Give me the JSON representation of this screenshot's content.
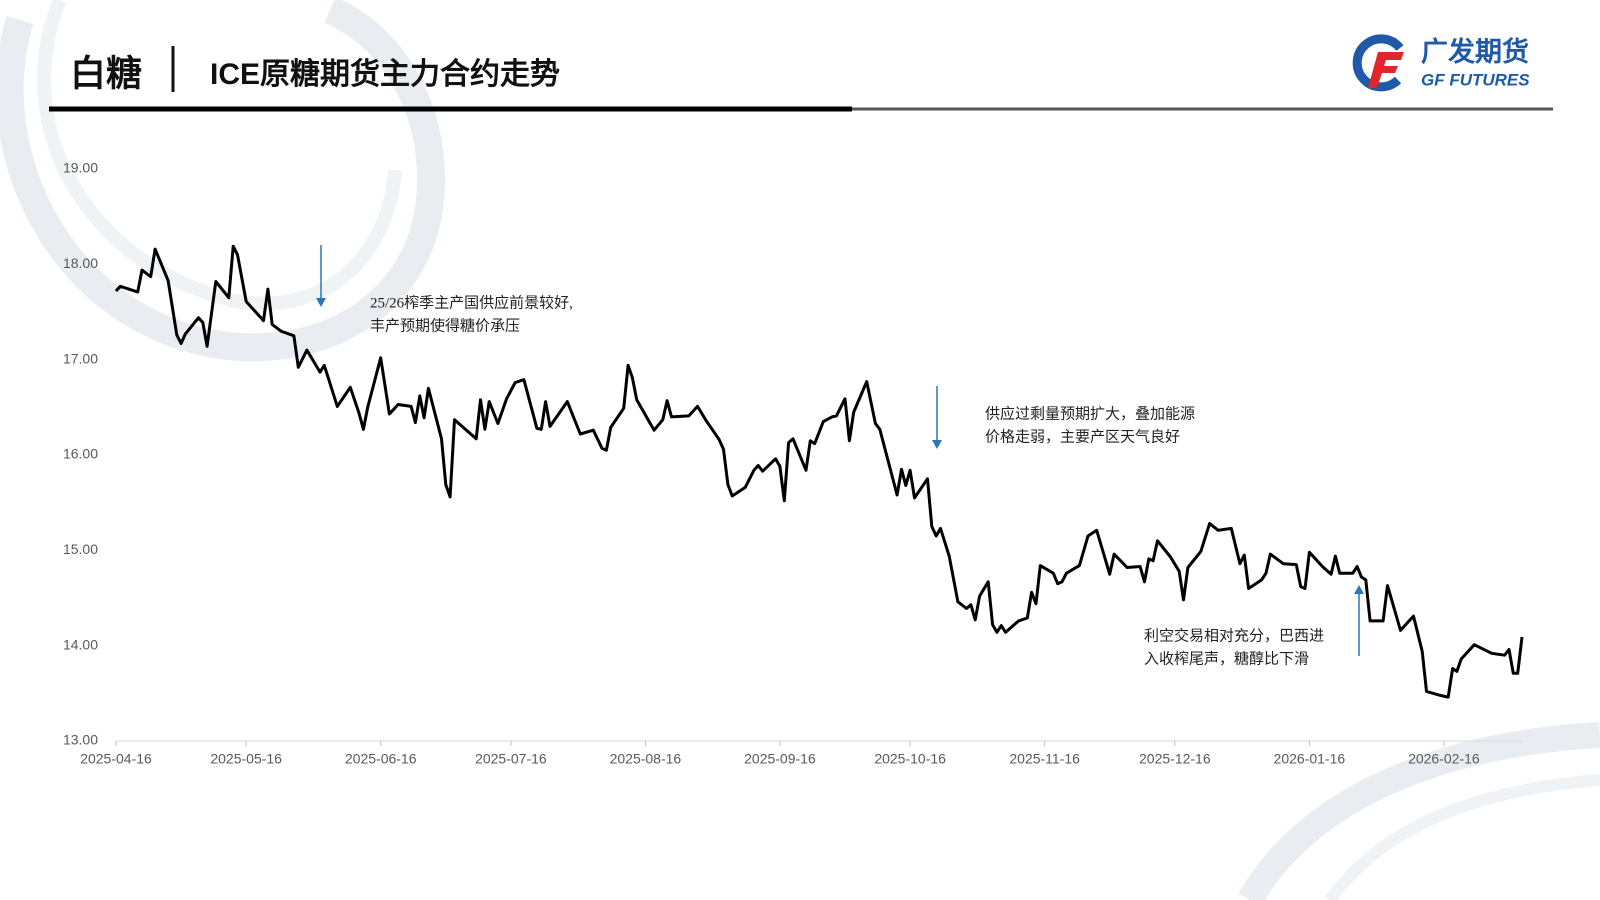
{
  "header": {
    "section": "白糖",
    "logo_cn": "广发期货",
    "logo_en": "GF FUTURES"
  },
  "chart_data": {
    "type": "line",
    "title": "ICE原糖期货主力合约走势",
    "annotations": [
      [
        "25/26榨季主产国供应前景较好,",
        "丰产预期使得糖价承压"
      ],
      [
        "供应过剩量预期扩大，叠加能源",
        "价格走弱，主要产区天气良好"
      ],
      [
        "利空交易相对充分，巴西进",
        "入收榨尾声，糖醇比下滑"
      ]
    ],
    "xlim": [
      "2025-04-16",
      "2026-03-06"
    ],
    "xticks": [
      "2025-04-16",
      "2025-05-16",
      "2025-06-16",
      "2025-07-16",
      "2025-08-16",
      "2025-09-16",
      "2025-10-16",
      "2025-11-16",
      "2025-12-16",
      "2026-01-16",
      "2026-02-16"
    ],
    "ylim": [
      13,
      19
    ],
    "yticks": [
      {
        "value": 13,
        "label": "13.00"
      },
      {
        "value": 14,
        "label": "14.00"
      },
      {
        "value": 15,
        "label": "15.00"
      },
      {
        "value": 16,
        "label": "16.00"
      },
      {
        "value": 17,
        "label": "17.00"
      },
      {
        "value": 18,
        "label": "18.00"
      },
      {
        "value": 19,
        "label": "19.00"
      }
    ],
    "color": "#000000",
    "x": [
      "2025-04-16",
      "2025-04-17",
      "2025-04-21",
      "2025-04-22",
      "2025-04-24",
      "2025-04-25",
      "2025-04-28",
      "2025-04-30",
      "2025-05-01",
      "2025-05-02",
      "2025-05-05",
      "2025-05-06",
      "2025-05-07",
      "2025-05-09",
      "2025-05-12",
      "2025-05-13",
      "2025-05-14",
      "2025-05-16",
      "2025-05-20",
      "2025-05-21",
      "2025-05-22",
      "2025-05-24",
      "2025-05-27",
      "2025-05-28",
      "2025-05-30",
      "2025-06-02",
      "2025-06-03",
      "2025-06-06",
      "2025-06-09",
      "2025-06-11",
      "2025-06-12",
      "2025-06-13",
      "2025-06-16",
      "2025-06-18",
      "2025-06-20",
      "2025-06-23",
      "2025-06-24",
      "2025-06-25",
      "2025-06-26",
      "2025-06-27",
      "2025-06-30",
      "2025-07-01",
      "2025-07-02",
      "2025-07-03",
      "2025-07-08",
      "2025-07-09",
      "2025-07-10",
      "2025-07-11",
      "2025-07-13",
      "2025-07-15",
      "2025-07-17",
      "2025-07-19",
      "2025-07-22",
      "2025-07-23",
      "2025-07-24",
      "2025-07-25",
      "2025-07-29",
      "2025-08-01",
      "2025-08-04",
      "2025-08-06",
      "2025-08-07",
      "2025-08-08",
      "2025-08-11",
      "2025-08-12",
      "2025-08-13",
      "2025-08-14",
      "2025-08-18",
      "2025-08-20",
      "2025-08-21",
      "2025-08-22",
      "2025-08-26",
      "2025-08-28",
      "2025-08-30",
      "2025-09-02",
      "2025-09-03",
      "2025-09-04",
      "2025-09-05",
      "2025-09-08",
      "2025-09-10",
      "2025-09-11",
      "2025-09-12",
      "2025-09-15",
      "2025-09-16",
      "2025-09-17",
      "2025-09-18",
      "2025-09-19",
      "2025-09-22",
      "2025-09-23",
      "2025-09-24",
      "2025-09-26",
      "2025-09-28",
      "2025-09-29",
      "2025-10-01",
      "2025-10-02",
      "2025-10-03",
      "2025-10-06",
      "2025-10-08",
      "2025-10-09",
      "2025-10-13",
      "2025-10-14",
      "2025-10-15",
      "2025-10-16",
      "2025-10-17",
      "2025-10-20",
      "2025-10-21",
      "2025-10-22",
      "2025-10-23",
      "2025-10-25",
      "2025-10-27",
      "2025-10-29",
      "2025-10-30",
      "2025-10-31",
      "2025-11-01",
      "2025-11-03",
      "2025-11-04",
      "2025-11-05",
      "2025-11-06",
      "2025-11-07",
      "2025-11-10",
      "2025-11-12",
      "2025-11-13",
      "2025-11-14",
      "2025-11-15",
      "2025-11-18",
      "2025-11-19",
      "2025-11-20",
      "2025-11-21",
      "2025-11-24",
      "2025-11-26",
      "2025-11-28",
      "2025-12-01",
      "2025-12-02",
      "2025-12-05",
      "2025-12-08",
      "2025-12-09",
      "2025-12-10",
      "2025-12-11",
      "2025-12-12",
      "2025-12-15",
      "2025-12-17",
      "2025-12-18",
      "2025-12-19",
      "2025-12-22",
      "2025-12-24",
      "2025-12-26",
      "2025-12-29",
      "2025-12-31",
      "2026-01-01",
      "2026-01-02",
      "2026-01-05",
      "2026-01-06",
      "2026-01-07",
      "2026-01-10",
      "2026-01-13",
      "2026-01-14",
      "2026-01-15",
      "2026-01-16",
      "2026-01-19",
      "2026-01-21",
      "2026-01-22",
      "2026-01-23",
      "2026-01-26",
      "2026-01-27",
      "2026-01-28",
      "2026-01-29",
      "2026-01-30",
      "2026-02-02",
      "2026-02-03",
      "2026-02-06",
      "2026-02-09",
      "2026-02-11",
      "2026-02-12",
      "2026-02-15",
      "2026-02-17",
      "2026-02-18",
      "2026-02-19",
      "2026-02-20",
      "2026-02-23",
      "2026-02-27",
      "2026-03-02",
      "2026-03-03",
      "2026-03-04",
      "2026-03-05",
      "2026-03-06"
    ],
    "values": [
      17.72,
      17.77,
      17.71,
      17.94,
      17.87,
      18.16,
      17.83,
      17.26,
      17.17,
      17.27,
      17.44,
      17.39,
      17.14,
      17.82,
      17.65,
      18.19,
      18.1,
      17.61,
      17.41,
      17.74,
      17.37,
      17.3,
      17.25,
      16.92,
      17.1,
      16.87,
      16.94,
      16.51,
      16.71,
      16.44,
      16.27,
      16.5,
      17.02,
      16.43,
      16.53,
      16.51,
      16.34,
      16.62,
      16.39,
      16.7,
      16.17,
      15.69,
      15.56,
      16.37,
      16.17,
      16.58,
      16.27,
      16.56,
      16.33,
      16.59,
      16.76,
      16.79,
      16.28,
      16.27,
      16.56,
      16.3,
      16.56,
      16.22,
      16.26,
      16.07,
      16.05,
      16.29,
      16.49,
      16.94,
      16.81,
      16.58,
      16.26,
      16.37,
      16.57,
      16.4,
      16.41,
      16.51,
      16.36,
      16.16,
      16.06,
      15.69,
      15.57,
      15.66,
      15.84,
      15.89,
      15.83,
      15.96,
      15.88,
      15.52,
      16.13,
      16.17,
      15.84,
      16.15,
      16.12,
      16.35,
      16.4,
      16.41,
      16.59,
      16.15,
      16.45,
      16.77,
      16.33,
      16.27,
      15.58,
      15.85,
      15.68,
      15.84,
      15.55,
      15.75,
      15.25,
      15.15,
      15.23,
      14.94,
      14.46,
      14.39,
      14.43,
      14.27,
      14.52,
      14.67,
      14.22,
      14.14,
      14.21,
      14.14,
      14.26,
      14.29,
      14.56,
      14.44,
      14.84,
      14.76,
      14.65,
      14.67,
      14.76,
      14.84,
      15.15,
      15.21,
      14.75,
      14.96,
      14.82,
      14.83,
      14.67,
      14.91,
      14.89,
      15.1,
      14.93,
      14.78,
      14.48,
      14.82,
      14.99,
      15.28,
      15.21,
      15.23,
      14.86,
      14.95,
      14.6,
      14.69,
      14.76,
      14.96,
      14.86,
      14.85,
      14.62,
      14.6,
      14.98,
      14.83,
      14.75,
      14.94,
      14.76,
      14.76,
      14.83,
      14.72,
      14.69,
      14.26,
      14.26,
      14.63,
      14.16,
      14.31,
      13.94,
      13.52,
      13.48,
      13.46,
      13.76,
      13.73,
      13.86,
      14.01,
      13.92,
      13.9,
      13.96,
      13.71,
      13.71,
      14.09
    ]
  }
}
